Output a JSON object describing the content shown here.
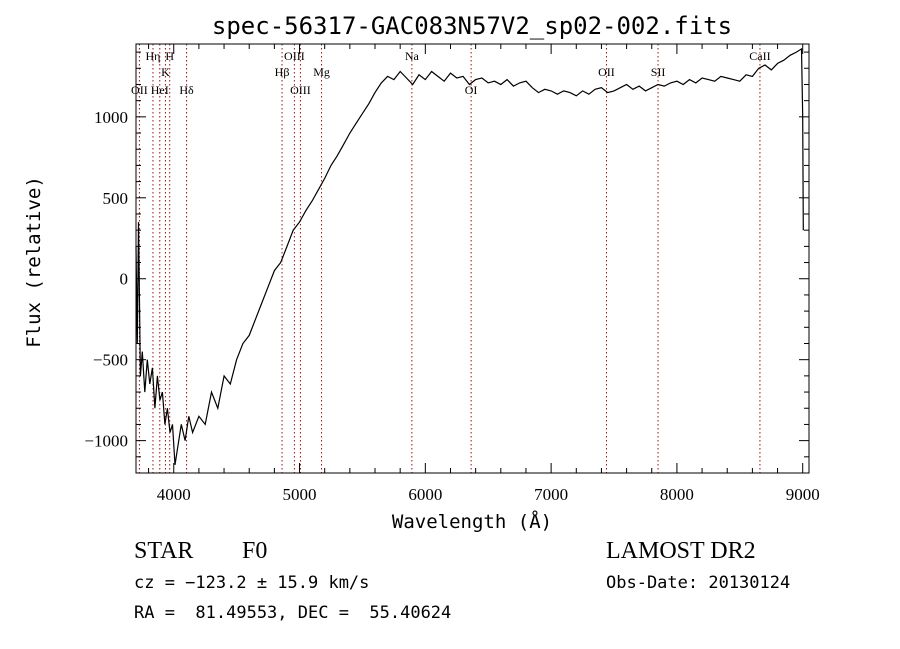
{
  "chart_data": {
    "type": "line",
    "title": "spec-56317-GAC083N57V2_sp02-002.fits",
    "xlabel": "Wavelength (Å)",
    "ylabel": "Flux (relative)",
    "xlim": [
      3700,
      9050
    ],
    "ylim": [
      -1200,
      1450
    ],
    "xticks": [
      4000,
      5000,
      6000,
      7000,
      8000,
      9000
    ],
    "yticks": [
      -1000,
      -500,
      0,
      500,
      1000
    ],
    "xtick_labels": [
      "4000",
      "5000",
      "6000",
      "7000",
      "8000",
      "9000"
    ],
    "ytick_labels": [
      "−1000",
      "−500",
      "0",
      "500",
      "1000"
    ],
    "grid": false,
    "series": [
      {
        "color": "#000000",
        "x": [
          3700,
          3710,
          3720,
          3735,
          3750,
          3770,
          3790,
          3810,
          3830,
          3850,
          3870,
          3890,
          3910,
          3930,
          3950,
          3970,
          3990,
          4010,
          4030,
          4060,
          4090,
          4120,
          4150,
          4200,
          4250,
          4300,
          4350,
          4400,
          4450,
          4500,
          4550,
          4600,
          4650,
          4700,
          4750,
          4800,
          4850,
          4900,
          4950,
          5000,
          5050,
          5100,
          5150,
          5200,
          5250,
          5300,
          5350,
          5400,
          5450,
          5500,
          5550,
          5600,
          5650,
          5700,
          5750,
          5800,
          5850,
          5900,
          5950,
          6000,
          6050,
          6100,
          6150,
          6200,
          6250,
          6300,
          6350,
          6400,
          6450,
          6500,
          6550,
          6600,
          6650,
          6700,
          6750,
          6800,
          6850,
          6900,
          6950,
          7000,
          7050,
          7100,
          7150,
          7200,
          7250,
          7300,
          7350,
          7400,
          7450,
          7500,
          7550,
          7600,
          7650,
          7700,
          7750,
          7800,
          7850,
          7900,
          7950,
          8000,
          8050,
          8100,
          8150,
          8200,
          8250,
          8300,
          8350,
          8400,
          8450,
          8500,
          8550,
          8600,
          8650,
          8700,
          8750,
          8800,
          8850,
          8900,
          8950,
          8990,
          9000,
          9005
        ],
        "y": [
          200,
          -400,
          350,
          -600,
          -450,
          -700,
          -500,
          -650,
          -550,
          -800,
          -600,
          -750,
          -700,
          -900,
          -800,
          -950,
          -900,
          -1150,
          -1050,
          -900,
          -1000,
          -850,
          -950,
          -850,
          -900,
          -700,
          -800,
          -600,
          -650,
          -500,
          -400,
          -350,
          -250,
          -150,
          -50,
          50,
          100,
          200,
          300,
          350,
          420,
          480,
          550,
          620,
          700,
          760,
          830,
          900,
          960,
          1020,
          1080,
          1150,
          1210,
          1250,
          1230,
          1280,
          1240,
          1200,
          1260,
          1230,
          1280,
          1250,
          1220,
          1270,
          1240,
          1250,
          1200,
          1230,
          1240,
          1210,
          1220,
          1200,
          1230,
          1190,
          1210,
          1220,
          1180,
          1150,
          1170,
          1160,
          1140,
          1160,
          1150,
          1130,
          1160,
          1140,
          1170,
          1180,
          1150,
          1160,
          1180,
          1200,
          1170,
          1190,
          1160,
          1180,
          1200,
          1190,
          1210,
          1220,
          1200,
          1230,
          1210,
          1240,
          1230,
          1220,
          1250,
          1240,
          1230,
          1220,
          1260,
          1250,
          1300,
          1320,
          1290,
          1330,
          1350,
          1380,
          1400,
          1420,
          1000,
          300
        ]
      }
    ],
    "line_markers": [
      {
        "x": 3727,
        "label": "OII",
        "row": 2
      },
      {
        "x": 3835,
        "label": "Hη",
        "row": 0
      },
      {
        "x": 3889,
        "label": "HeI",
        "row": 2
      },
      {
        "x": 3934,
        "label": "K",
        "row": 1
      },
      {
        "x": 3968,
        "label": "H",
        "row": 0
      },
      {
        "x": 4102,
        "label": "Hδ",
        "row": 2
      },
      {
        "x": 4861,
        "label": "Hβ",
        "row": 1
      },
      {
        "x": 4959,
        "label": "OIII",
        "row": 0
      },
      {
        "x": 5007,
        "label": "OIII",
        "row": 2
      },
      {
        "x": 5175,
        "label": "Mg",
        "row": 1
      },
      {
        "x": 5893,
        "label": "Na",
        "row": 0
      },
      {
        "x": 6364,
        "label": "OI",
        "row": 2
      },
      {
        "x": 7440,
        "label": "OII",
        "row": 1
      },
      {
        "x": 7850,
        "label": "SII",
        "row": 1
      },
      {
        "x": 8660,
        "label": "CaII",
        "row": 0
      }
    ]
  },
  "info": {
    "object_type": "STAR",
    "subclass": "F0",
    "survey": "LAMOST DR2",
    "cz": "cz = −123.2 ± 15.9 km/s",
    "obs_date": "Obs-Date: 20130124",
    "coords": "RA =  81.49553, DEC =  55.40624"
  }
}
